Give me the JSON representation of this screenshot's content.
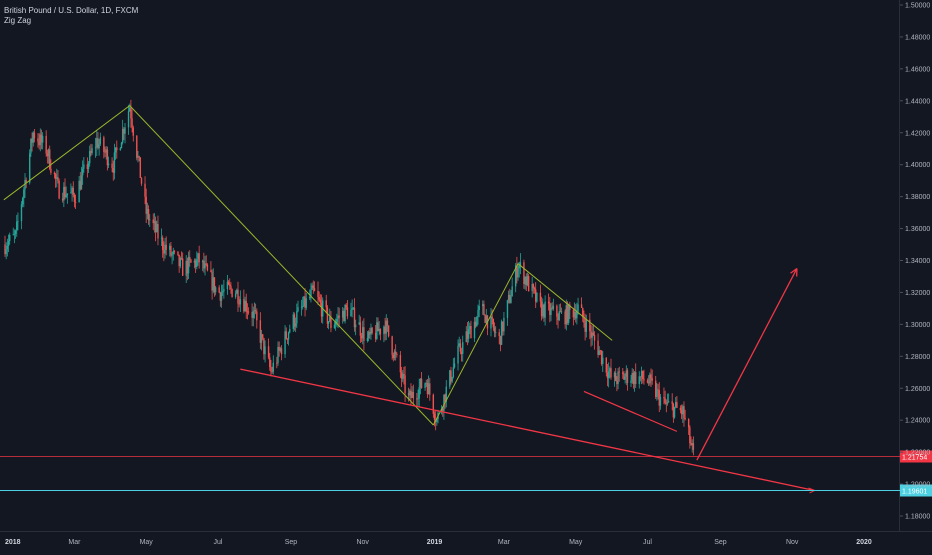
{
  "header": {
    "symbol_line": "British Pound / U.S. Dollar, 1D, FXCM",
    "indicator": "Zig Zag"
  },
  "colors": {
    "background": "#131722",
    "up": "#26a69a",
    "down": "#ef5350",
    "zigzag": "#9bb52a",
    "drawing_red": "#f23645",
    "price_line": "#f23645",
    "support_line": "#4dd0e1",
    "axis_text": "#b2b5be"
  },
  "chart_data": {
    "type": "candlestick",
    "title": "British Pound / U.S. Dollar, 1D, FXCM",
    "y_axis": {
      "range": [
        1.17,
        1.5
      ],
      "ticks": [
        "1.50000",
        "1.48000",
        "1.46000",
        "1.44000",
        "1.42000",
        "1.40000",
        "1.38000",
        "1.36000",
        "1.34000",
        "1.32000",
        "1.30000",
        "1.28000",
        "1.26000",
        "1.24000",
        "1.22000",
        "1.20000",
        "1.18000"
      ]
    },
    "x_axis": {
      "ticks": [
        {
          "label": "2018",
          "date": "2018-01-01",
          "bold": true
        },
        {
          "label": "Mar",
          "date": "2018-03-01"
        },
        {
          "label": "May",
          "date": "2018-05-01"
        },
        {
          "label": "Jul",
          "date": "2018-07-01"
        },
        {
          "label": "Sep",
          "date": "2018-09-01"
        },
        {
          "label": "Nov",
          "date": "2018-11-01"
        },
        {
          "label": "2019",
          "date": "2019-01-01",
          "bold": true
        },
        {
          "label": "Mar",
          "date": "2019-03-01"
        },
        {
          "label": "May",
          "date": "2019-05-01"
        },
        {
          "label": "Jul",
          "date": "2019-07-01"
        },
        {
          "label": "Sep",
          "date": "2019-09-01"
        },
        {
          "label": "Nov",
          "date": "2019-11-01"
        },
        {
          "label": "2020",
          "date": "2020-01-01",
          "bold": true
        }
      ]
    },
    "price_path": [
      [
        "2018-01-01",
        1.35
      ],
      [
        "2018-01-10",
        1.355
      ],
      [
        "2018-01-25",
        1.42
      ],
      [
        "2018-02-05",
        1.41
      ],
      [
        "2018-02-15",
        1.385
      ],
      [
        "2018-03-01",
        1.38
      ],
      [
        "2018-03-20",
        1.415
      ],
      [
        "2018-04-03",
        1.4
      ],
      [
        "2018-04-17",
        1.437
      ],
      [
        "2018-05-01",
        1.37
      ],
      [
        "2018-05-15",
        1.35
      ],
      [
        "2018-06-01",
        1.335
      ],
      [
        "2018-06-15",
        1.34
      ],
      [
        "2018-07-01",
        1.32
      ],
      [
        "2018-07-15",
        1.322
      ],
      [
        "2018-08-01",
        1.305
      ],
      [
        "2018-08-15",
        1.27
      ],
      [
        "2018-09-01",
        1.3
      ],
      [
        "2018-09-20",
        1.32
      ],
      [
        "2018-10-05",
        1.3
      ],
      [
        "2018-10-20",
        1.31
      ],
      [
        "2018-11-05",
        1.29
      ],
      [
        "2018-11-20",
        1.3
      ],
      [
        "2018-12-10",
        1.253
      ],
      [
        "2018-12-25",
        1.265
      ],
      [
        "2019-01-03",
        1.24
      ],
      [
        "2019-01-20",
        1.28
      ],
      [
        "2019-02-10",
        1.31
      ],
      [
        "2019-02-25",
        1.29
      ],
      [
        "2019-03-13",
        1.338
      ],
      [
        "2019-04-01",
        1.31
      ],
      [
        "2019-04-20",
        1.305
      ],
      [
        "2019-05-03",
        1.31
      ],
      [
        "2019-05-20",
        1.285
      ],
      [
        "2019-06-01",
        1.265
      ],
      [
        "2019-06-15",
        1.268
      ],
      [
        "2019-07-01",
        1.265
      ],
      [
        "2019-07-15",
        1.25
      ],
      [
        "2019-07-31",
        1.245
      ],
      [
        "2019-08-10",
        1.215
      ]
    ],
    "zigzag": [
      [
        "2017-12-31",
        1.378
      ],
      [
        "2018-04-17",
        1.437
      ],
      [
        "2018-12-31",
        1.237
      ],
      [
        "2019-03-13",
        1.338
      ],
      [
        "2019-06-01",
        1.29
      ]
    ],
    "drawings": {
      "trend_line": [
        [
          "2018-07-20",
          1.272
        ],
        [
          "2019-11-20",
          1.196
        ]
      ],
      "wedge_lower": [
        [
          "2019-05-08",
          1.258
        ],
        [
          "2019-07-26",
          1.233
        ]
      ],
      "projection_arrow": [
        [
          "2019-08-12",
          1.215
        ],
        [
          "2019-11-05",
          1.335
        ]
      ]
    },
    "price_line": {
      "value": 1.21754,
      "label": "1.21754"
    },
    "support_line": {
      "value": 1.19601,
      "label": "1.19601"
    },
    "grid": false,
    "legend": "top-left"
  }
}
